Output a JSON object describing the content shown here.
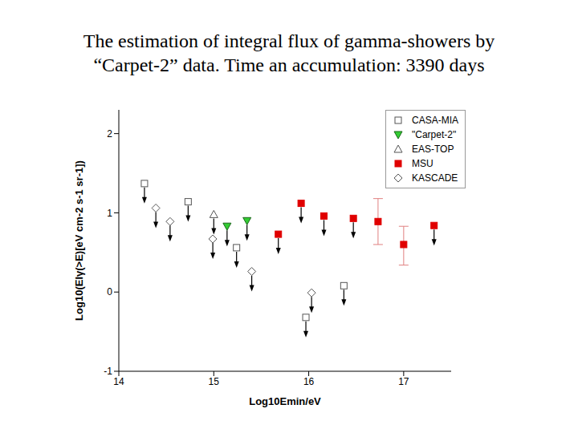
{
  "chart_data": {
    "type": "scatter",
    "title": "The estimation of integral flux  of gamma-showers by\n“Carpet-2” data. Time an accumulation: 3390 days",
    "x_label": "Log10Emin/eV",
    "y_label": "Log10(EIγ(>E)[eV cm-2 s-1 sr-1])",
    "xlim": [
      14,
      17.5
    ],
    "xticks": [
      14,
      15,
      16,
      17
    ],
    "ylim": [
      -1,
      2.3
    ],
    "yticks": [
      -1,
      0,
      1,
      2
    ],
    "legend": "upper right",
    "series": [
      {
        "name": "CASA-MIA",
        "color": "#555555",
        "marker": "open_square",
        "x": [
          14.27,
          14.73,
          15.24,
          15.97,
          16.37
        ],
        "values": [
          1.37,
          1.14,
          0.56,
          -0.32,
          0.08
        ],
        "upper_limit": [
          true,
          true,
          true,
          true,
          true
        ],
        "errors": [
          null,
          null,
          null,
          null,
          null
        ]
      },
      {
        "name": "\"Carpet-2\"",
        "color": "#33cc33",
        "marker": "filled_triangle_down",
        "x": [
          15.14,
          15.35
        ],
        "values": [
          0.83,
          0.9
        ],
        "upper_limit": [
          true,
          true
        ],
        "errors": [
          null,
          null
        ]
      },
      {
        "name": "EAS-TOP",
        "color": "#555555",
        "marker": "open_triangle",
        "x": [
          15.0
        ],
        "values": [
          0.98
        ],
        "upper_limit": [
          true
        ],
        "errors": [
          null
        ]
      },
      {
        "name": "MSU",
        "color": "#e00000",
        "marker": "filled_square",
        "x": [
          15.68,
          15.92,
          16.16,
          16.47,
          16.73,
          17.0,
          17.32
        ],
        "values": [
          0.73,
          1.12,
          0.96,
          0.93,
          0.89,
          0.6,
          0.84
        ],
        "upper_limit": [
          true,
          true,
          true,
          true,
          false,
          false,
          true
        ],
        "errors": [
          null,
          null,
          null,
          null,
          [
            0.29,
            0.29
          ],
          [
            0.26,
            0.23
          ],
          null
        ]
      },
      {
        "name": "KASCADE",
        "color": "#555555",
        "marker": "open_diamond",
        "x": [
          14.39,
          14.54,
          14.99,
          15.4,
          16.03
        ],
        "values": [
          1.06,
          0.89,
          0.67,
          0.26,
          -0.01
        ],
        "upper_limit": [
          true,
          true,
          true,
          true,
          true
        ],
        "errors": [
          null,
          null,
          null,
          null,
          null
        ]
      }
    ]
  }
}
